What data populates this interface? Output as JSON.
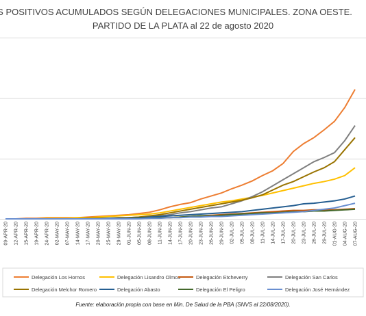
{
  "chart_data": {
    "type": "line",
    "title": "VOLUCIÓN DE CASOS POSITIVOS ACUMULADOS SEGÚN DELEGACIONES MUNICIPALES. ZONA OESTE.",
    "subtitle": "PARTIDO DE LA PLATA al 22 de agosto 2020",
    "source": "Fuente: elaboración propia con base en Min. De Salud de la PBA (SNVS al 22/08/2020).",
    "categories": [
      "09-APR-20",
      "12-APR-20",
      "15-APR-20",
      "19-APR-20",
      "24-APR-20",
      "02-MAY-20",
      "07-MAY-20",
      "14-MAY-20",
      "17-MAY-20",
      "20-MAY-20",
      "25-MAY-20",
      "29-MAY-20",
      "01-JUN-20",
      "05-JUN-20",
      "08-JUN-20",
      "11-JUN-20",
      "14-JUN-20",
      "17-JUN-20",
      "20-JUN-20",
      "23-JUN-20",
      "26-JUN-20",
      "29-JUN-20",
      "02-JUL-20",
      "05-JUL-20",
      "08-JUL-20",
      "11-JUL-20",
      "14-JUL-20",
      "17-JUL-20",
      "20-JUL-20",
      "23-JUL-20",
      "26-JUL-20",
      "29-JUL-20",
      "01-AUG-20",
      "04-AUG-20",
      "07-AUG-20"
    ],
    "ylim": [
      0,
      3.25
    ],
    "series": [
      {
        "name": "Delegación Los Hornos",
        "color": "#ed7d31",
        "values": [
          0,
          0,
          0.01,
          0.01,
          0.02,
          0.02,
          0.02,
          0.02,
          0.03,
          0.04,
          0.05,
          0.06,
          0.07,
          0.09,
          0.11,
          0.15,
          0.2,
          0.24,
          0.27,
          0.33,
          0.38,
          0.43,
          0.5,
          0.56,
          0.63,
          0.72,
          0.8,
          0.92,
          1.12,
          1.25,
          1.35,
          1.48,
          1.62,
          1.85,
          2.15
        ]
      },
      {
        "name": "Delegación Lisandro Olmos",
        "color": "#ffc000",
        "values": [
          0,
          0,
          0,
          0,
          0.01,
          0.01,
          0.01,
          0.02,
          0.02,
          0.03,
          0.04,
          0.05,
          0.06,
          0.07,
          0.08,
          0.1,
          0.13,
          0.16,
          0.19,
          0.22,
          0.25,
          0.28,
          0.3,
          0.33,
          0.36,
          0.39,
          0.43,
          0.47,
          0.51,
          0.55,
          0.59,
          0.62,
          0.66,
          0.72,
          0.85
        ]
      },
      {
        "name": "Delegación Etcheverry",
        "color": "#c55a11",
        "values": [
          0,
          0,
          0,
          0,
          0,
          0,
          0,
          0,
          0,
          0,
          0,
          0,
          0.01,
          0.01,
          0.01,
          0.02,
          0.02,
          0.03,
          0.04,
          0.05,
          0.06,
          0.07,
          0.08,
          0.09,
          0.1,
          0.11,
          0.12,
          0.13,
          0.14,
          0.14,
          0.15,
          0.15,
          0.15,
          0.16,
          0.17
        ]
      },
      {
        "name": "Delegación San Carlos",
        "color": "#7f7f7f",
        "values": [
          0,
          0,
          0,
          0,
          0,
          0,
          0,
          0,
          0,
          0.01,
          0.01,
          0.01,
          0.02,
          0.03,
          0.04,
          0.05,
          0.07,
          0.1,
          0.12,
          0.15,
          0.18,
          0.2,
          0.25,
          0.3,
          0.37,
          0.45,
          0.55,
          0.65,
          0.75,
          0.85,
          0.95,
          1.02,
          1.1,
          1.3,
          1.55
        ]
      },
      {
        "name": "Delegación Melchor Romero",
        "color": "#997300",
        "values": [
          0,
          0,
          0,
          0,
          0,
          0,
          0,
          0,
          0.01,
          0.01,
          0.01,
          0.02,
          0.02,
          0.03,
          0.05,
          0.07,
          0.1,
          0.13,
          0.16,
          0.19,
          0.22,
          0.25,
          0.28,
          0.31,
          0.35,
          0.4,
          0.48,
          0.56,
          0.62,
          0.7,
          0.78,
          0.85,
          0.95,
          1.15,
          1.35
        ]
      },
      {
        "name": "Delegación Abasto",
        "color": "#255e91",
        "values": [
          0,
          0,
          0,
          0,
          0,
          0,
          0,
          0,
          0,
          0,
          0.01,
          0.01,
          0.01,
          0.02,
          0.03,
          0.04,
          0.05,
          0.06,
          0.07,
          0.08,
          0.09,
          0.1,
          0.11,
          0.12,
          0.14,
          0.16,
          0.18,
          0.2,
          0.22,
          0.25,
          0.26,
          0.28,
          0.3,
          0.33,
          0.38
        ]
      },
      {
        "name": "Delegación El Peligro",
        "color": "#43682b",
        "values": [
          0,
          0,
          0,
          0,
          0,
          0,
          0,
          0,
          0,
          0,
          0,
          0,
          0,
          0.01,
          0.01,
          0.02,
          0.02,
          0.03,
          0.04,
          0.05,
          0.05,
          0.06,
          0.07,
          0.08,
          0.09,
          0.1,
          0.1,
          0.11,
          0.12,
          0.12,
          0.13,
          0.13,
          0.14,
          0.15,
          0.16
        ]
      },
      {
        "name": "Delegación José Hernández",
        "color": "#698ed0",
        "values": [
          0,
          0,
          0,
          0,
          0,
          0,
          0,
          0,
          0,
          0,
          0,
          0,
          0,
          0,
          0.01,
          0.01,
          0.02,
          0.02,
          0.03,
          0.03,
          0.04,
          0.04,
          0.05,
          0.06,
          0.07,
          0.08,
          0.09,
          0.1,
          0.11,
          0.12,
          0.14,
          0.16,
          0.18,
          0.22,
          0.26
        ]
      }
    ]
  }
}
